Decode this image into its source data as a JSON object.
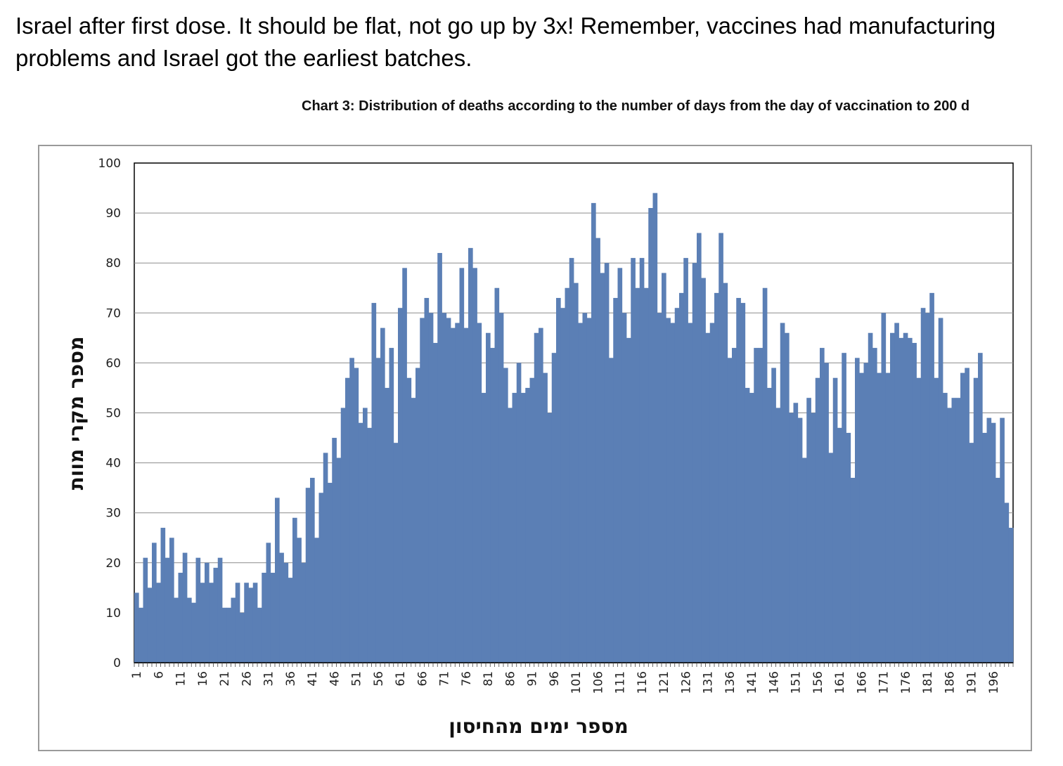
{
  "post": {
    "text": "Israel after first dose. It should be flat, not go up by 3x! Remember, vaccines had manufacturing problems and Israel got the earliest batches."
  },
  "chart_data": {
    "type": "bar",
    "title": "Chart 3: Distribution of deaths according to the number of days from the day of vaccination to 200 d",
    "xlabel": "מספר ימים מהחיסון",
    "ylabel": "מספר מקרי מוות",
    "ylim": [
      0,
      100
    ],
    "yticks": [
      0,
      10,
      20,
      30,
      40,
      50,
      60,
      70,
      80,
      90,
      100
    ],
    "xtick_labels": [
      "1",
      "6",
      "11",
      "16",
      "21",
      "26",
      "31",
      "36",
      "41",
      "46",
      "51",
      "56",
      "61",
      "66",
      "71",
      "76",
      "81",
      "86",
      "91",
      "96",
      "101",
      "106",
      "111",
      "116",
      "121",
      "126",
      "131",
      "136",
      "141",
      "146",
      "151",
      "156",
      "161",
      "166",
      "171",
      "176",
      "181",
      "186",
      "191",
      "196"
    ],
    "grid": true,
    "bar_color": "#5b7fb5",
    "x": [
      1,
      2,
      3,
      4,
      5,
      6,
      7,
      8,
      9,
      10,
      11,
      12,
      13,
      14,
      15,
      16,
      17,
      18,
      19,
      20,
      21,
      22,
      23,
      24,
      25,
      26,
      27,
      28,
      29,
      30,
      31,
      32,
      33,
      34,
      35,
      36,
      37,
      38,
      39,
      40,
      41,
      42,
      43,
      44,
      45,
      46,
      47,
      48,
      49,
      50,
      51,
      52,
      53,
      54,
      55,
      56,
      57,
      58,
      59,
      60,
      61,
      62,
      63,
      64,
      65,
      66,
      67,
      68,
      69,
      70,
      71,
      72,
      73,
      74,
      75,
      76,
      77,
      78,
      79,
      80,
      81,
      82,
      83,
      84,
      85,
      86,
      87,
      88,
      89,
      90,
      91,
      92,
      93,
      94,
      95,
      96,
      97,
      98,
      99,
      100,
      101,
      102,
      103,
      104,
      105,
      106,
      107,
      108,
      109,
      110,
      111,
      112,
      113,
      114,
      115,
      116,
      117,
      118,
      119,
      120,
      121,
      122,
      123,
      124,
      125,
      126,
      127,
      128,
      129,
      130,
      131,
      132,
      133,
      134,
      135,
      136,
      137,
      138,
      139,
      140,
      141,
      142,
      143,
      144,
      145,
      146,
      147,
      148,
      149,
      150,
      151,
      152,
      153,
      154,
      155,
      156,
      157,
      158,
      159,
      160,
      161,
      162,
      163,
      164,
      165,
      166,
      167,
      168,
      169,
      170,
      171,
      172,
      173,
      174,
      175,
      176,
      177,
      178,
      179,
      180,
      181,
      182,
      183,
      184,
      185,
      186,
      187,
      188,
      189,
      190,
      191,
      192,
      193,
      194,
      195,
      196,
      197,
      198,
      199,
      200
    ],
    "values": [
      14,
      11,
      21,
      15,
      24,
      16,
      27,
      21,
      25,
      13,
      18,
      22,
      13,
      12,
      21,
      16,
      20,
      16,
      19,
      21,
      11,
      11,
      13,
      16,
      10,
      16,
      15,
      16,
      11,
      18,
      24,
      18,
      33,
      22,
      20,
      17,
      29,
      25,
      20,
      35,
      37,
      25,
      34,
      42,
      36,
      45,
      41,
      51,
      57,
      61,
      59,
      48,
      51,
      47,
      72,
      61,
      67,
      55,
      63,
      44,
      71,
      79,
      57,
      53,
      59,
      69,
      73,
      70,
      64,
      82,
      70,
      69,
      67,
      68,
      79,
      67,
      83,
      79,
      68,
      54,
      66,
      63,
      75,
      70,
      59,
      51,
      54,
      60,
      54,
      55,
      57,
      66,
      67,
      58,
      50,
      62,
      73,
      71,
      75,
      81,
      76,
      68,
      70,
      69,
      92,
      85,
      78,
      80,
      61,
      73,
      79,
      70,
      65,
      81,
      75,
      81,
      75,
      91,
      94,
      70,
      78,
      69,
      68,
      71,
      74,
      81,
      68,
      80,
      86,
      77,
      66,
      68,
      74,
      86,
      76,
      61,
      63,
      73,
      72,
      55,
      54,
      63,
      63,
      75,
      55,
      59,
      51,
      68,
      66,
      50,
      52,
      49,
      41,
      53,
      50,
      57,
      63,
      60,
      42,
      57,
      47,
      62,
      46,
      37,
      61,
      58,
      60,
      66,
      63,
      58,
      70,
      58,
      66,
      68,
      65,
      66,
      65,
      64,
      57,
      71,
      70,
      74,
      57,
      69,
      54,
      51,
      53,
      53,
      58,
      59,
      44,
      57,
      62,
      46,
      49,
      48,
      37,
      49,
      32,
      27
    ]
  }
}
